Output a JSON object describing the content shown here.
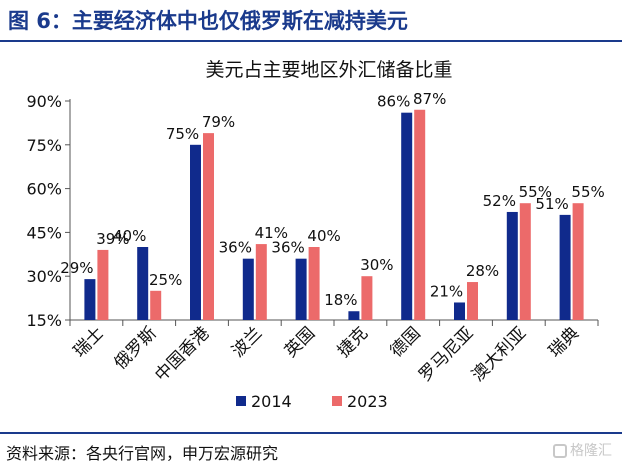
{
  "header": {
    "title": "图 6：主要经济体中也仅俄罗斯在减持美元"
  },
  "footer": {
    "source": "资料来源：各央行官网，申万宏源研究",
    "watermark": "格隆汇"
  },
  "colors": {
    "series_2014": "#102a8c",
    "series_2023": "#ec6a6a",
    "brand": "#1a3a8c"
  },
  "chart_data": {
    "type": "bar",
    "title": "美元占主要地区外汇储备比重",
    "categories": [
      "瑞士",
      "俄罗斯",
      "中国香港",
      "波兰",
      "英国",
      "捷克",
      "德国",
      "罗马尼亚",
      "澳大利亚",
      "瑞典"
    ],
    "series": [
      {
        "name": "2014",
        "values": [
          29,
          40,
          75,
          36,
          36,
          18,
          86,
          21,
          52,
          51
        ],
        "labels": [
          "29%",
          "40%",
          "75%",
          "36%",
          "36%",
          "18%",
          "86%",
          "21%",
          "52%",
          "51%"
        ]
      },
      {
        "name": "2023",
        "values": [
          39,
          25,
          79,
          41,
          40,
          30,
          87,
          28,
          55,
          55
        ],
        "labels": [
          "39%",
          "25%",
          "79%",
          "41%",
          "40%",
          "30%",
          "87%",
          "28%",
          "55%",
          "55%"
        ]
      }
    ],
    "yticks": [
      "15%",
      "30%",
      "45%",
      "60%",
      "75%",
      "90%"
    ],
    "ytick_values": [
      15,
      30,
      45,
      60,
      75,
      90
    ],
    "ylim": [
      15,
      90
    ],
    "grid": false,
    "legend": "bottom"
  }
}
